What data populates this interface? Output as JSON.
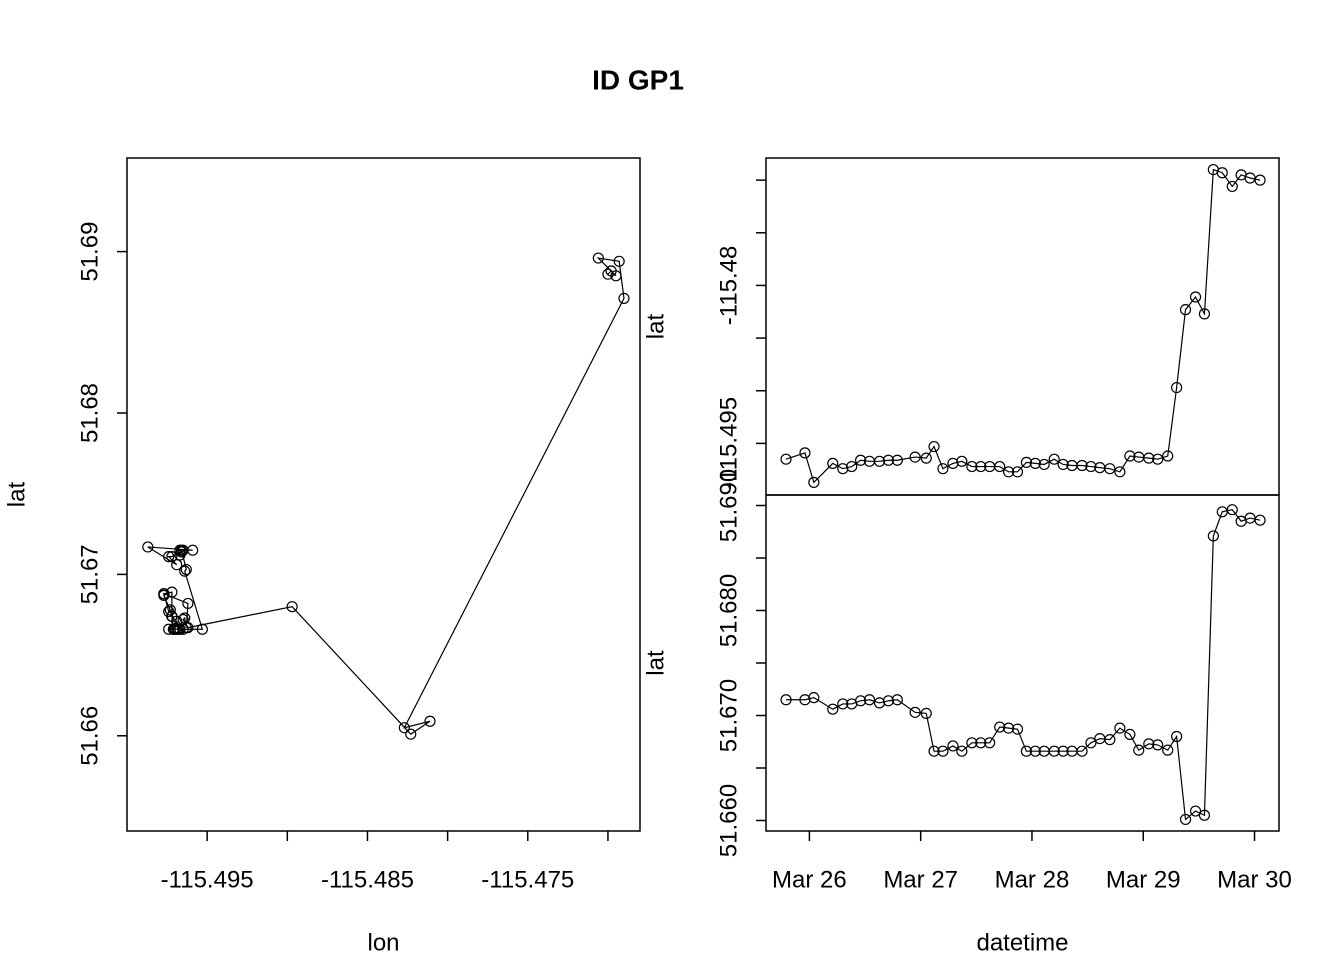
{
  "title": "ID GP1",
  "chart_data": [
    {
      "type": "line",
      "x_label": "lon",
      "y_label": "lat",
      "color": "#000000",
      "x": [
        -115.4965,
        -115.4959,
        -115.4987,
        -115.4969,
        -115.4974,
        -115.4972,
        -115.4966,
        -115.4967,
        -115.4967,
        -115.4966,
        -115.4966,
        -115.4963,
        -115.4964,
        -115.4953,
        -115.4974,
        -115.4969,
        -115.4967,
        -115.4972,
        -115.4972,
        -115.4972,
        -115.4972,
        -115.4977,
        -115.4977,
        -115.4968,
        -115.4969,
        -115.497,
        -115.4965,
        -115.497,
        -115.4971,
        -115.4971,
        -115.4972,
        -115.4973,
        -115.4974,
        -115.4977,
        -115.4962,
        -115.4963,
        -115.4964,
        -115.4965,
        -115.4962,
        -115.4897,
        -115.4823,
        -115.4811,
        -115.4827,
        -115.469,
        -115.4693,
        -115.4706,
        -115.4695,
        -115.4698,
        -115.47
      ],
      "series": [
        {
          "values": [
            51.6715,
            51.6715,
            51.6717,
            51.6706,
            51.6711,
            51.6711,
            51.6714,
            51.6715,
            51.6712,
            51.6714,
            51.6715,
            51.6703,
            51.6702,
            51.6666,
            51.6666,
            51.6671,
            51.6666,
            51.6674,
            51.6674,
            51.6674,
            51.6689,
            51.6688,
            51.6687,
            51.6666,
            51.6666,
            51.6666,
            51.6666,
            51.6666,
            51.6666,
            51.6666,
            51.6674,
            51.6678,
            51.6677,
            51.6688,
            51.6682,
            51.6667,
            51.6673,
            51.6672,
            51.6667,
            51.668,
            51.6601,
            51.6609,
            51.6605,
            51.6871,
            51.6894,
            51.6896,
            51.6885,
            51.6888,
            51.6886
          ]
        }
      ],
      "xlim": [
        -115.5,
        -115.468
      ],
      "ylim": [
        51.6541,
        51.6958
      ],
      "xticks": [
        -115.495,
        {
          "value": -115.49,
          "label": null
        },
        -115.485,
        {
          "value": -115.48,
          "label": null
        },
        -115.475,
        {
          "value": -115.47,
          "label": null
        }
      ],
      "yticks": [
        51.66,
        51.67,
        51.68,
        51.69
      ]
    },
    {
      "type": "line",
      "y_label": "lat",
      "color": "#000000",
      "x": [
        25.79,
        25.96,
        26.04,
        26.21,
        26.3,
        26.38,
        26.46,
        26.54,
        26.63,
        26.71,
        26.79,
        26.95,
        27.05,
        27.12,
        27.2,
        27.29,
        27.37,
        27.46,
        27.54,
        27.62,
        27.71,
        27.79,
        27.87,
        27.95,
        28.03,
        28.11,
        28.2,
        28.28,
        28.36,
        28.45,
        28.53,
        28.61,
        28.7,
        28.79,
        28.88,
        28.96,
        29.05,
        29.13,
        29.22,
        29.3,
        29.38,
        29.47,
        29.55,
        29.63,
        29.71,
        29.8,
        29.88,
        29.96,
        30.05
      ],
      "series": [
        {
          "values": [
            -115.4965,
            -115.4959,
            -115.4987,
            -115.4969,
            -115.4974,
            -115.4972,
            -115.4966,
            -115.4967,
            -115.4967,
            -115.4966,
            -115.4966,
            -115.4963,
            -115.4964,
            -115.4953,
            -115.4974,
            -115.4969,
            -115.4967,
            -115.4972,
            -115.4972,
            -115.4972,
            -115.4972,
            -115.4977,
            -115.4977,
            -115.4968,
            -115.4969,
            -115.497,
            -115.4965,
            -115.497,
            -115.4971,
            -115.4971,
            -115.4972,
            -115.4973,
            -115.4974,
            -115.4977,
            -115.4962,
            -115.4963,
            -115.4964,
            -115.4965,
            -115.4962,
            -115.4897,
            -115.4823,
            -115.4811,
            -115.4827,
            -115.469,
            -115.4693,
            -115.4706,
            -115.4695,
            -115.4698,
            -115.47
          ]
        }
      ],
      "xlim": [
        25.61,
        30.22
      ],
      "ylim": [
        -115.4999,
        -115.4679
      ],
      "yticks": [
        {
          "value": -115.47,
          "label": null
        },
        {
          "value": -115.475,
          "label": null
        },
        -115.48,
        {
          "value": -115.485,
          "label": null
        },
        {
          "value": -115.49,
          "label": null
        },
        -115.495
      ]
    },
    {
      "type": "line",
      "x_label": "datetime",
      "y_label": "lat",
      "color": "#000000",
      "x": [
        25.79,
        25.96,
        26.04,
        26.21,
        26.3,
        26.38,
        26.46,
        26.54,
        26.63,
        26.71,
        26.79,
        26.95,
        27.05,
        27.12,
        27.2,
        27.29,
        27.37,
        27.46,
        27.54,
        27.62,
        27.71,
        27.79,
        27.87,
        27.95,
        28.03,
        28.11,
        28.2,
        28.28,
        28.36,
        28.45,
        28.53,
        28.61,
        28.7,
        28.79,
        28.88,
        28.96,
        29.05,
        29.13,
        29.22,
        29.3,
        29.38,
        29.47,
        29.55,
        29.63,
        29.71,
        29.8,
        29.88,
        29.96,
        30.05
      ],
      "series": [
        {
          "values": [
            51.6715,
            51.6715,
            51.6717,
            51.6706,
            51.6711,
            51.6711,
            51.6714,
            51.6715,
            51.6712,
            51.6714,
            51.6715,
            51.6703,
            51.6702,
            51.6666,
            51.6666,
            51.6671,
            51.6666,
            51.6674,
            51.6674,
            51.6674,
            51.6689,
            51.6688,
            51.6687,
            51.6666,
            51.6666,
            51.6666,
            51.6666,
            51.6666,
            51.6666,
            51.6666,
            51.6674,
            51.6678,
            51.6677,
            51.6688,
            51.6682,
            51.6667,
            51.6673,
            51.6672,
            51.6667,
            51.668,
            51.6601,
            51.6609,
            51.6605,
            51.6871,
            51.6894,
            51.6896,
            51.6885,
            51.6888,
            51.6886
          ]
        }
      ],
      "xlim": [
        25.61,
        30.22
      ],
      "ylim": [
        51.659,
        51.691
      ],
      "xticks": [
        {
          "value": 26,
          "label": "Mar 26"
        },
        {
          "value": 27,
          "label": "Mar 27"
        },
        {
          "value": 28,
          "label": "Mar 28"
        },
        {
          "value": 29,
          "label": "Mar 29"
        },
        {
          "value": 30,
          "label": "Mar 30"
        }
      ],
      "yticks": [
        {
          "value": 51.66,
          "label": "51.660"
        },
        {
          "value": 51.665,
          "label": null
        },
        {
          "value": 51.67,
          "label": "51.670"
        },
        {
          "value": 51.675,
          "label": null
        },
        {
          "value": 51.68,
          "label": "51.680"
        },
        {
          "value": 51.685,
          "label": null
        },
        {
          "value": 51.69,
          "label": "51.690"
        }
      ]
    }
  ]
}
